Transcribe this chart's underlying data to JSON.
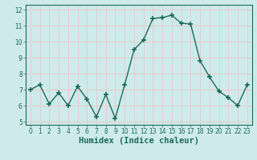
{
  "title": "",
  "xlabel": "Humidex (Indice chaleur)",
  "ylabel": "",
  "x_values": [
    0,
    1,
    2,
    3,
    4,
    5,
    6,
    7,
    8,
    9,
    10,
    11,
    12,
    13,
    14,
    15,
    16,
    17,
    18,
    19,
    20,
    21,
    22,
    23
  ],
  "y_values": [
    7.0,
    7.3,
    6.1,
    6.8,
    6.0,
    7.2,
    6.4,
    5.3,
    6.7,
    5.2,
    7.3,
    9.5,
    10.1,
    11.45,
    11.5,
    11.65,
    11.15,
    11.1,
    8.8,
    7.8,
    6.9,
    6.5,
    6.0,
    7.3
  ],
  "line_color": "#1a6b5a",
  "marker": "+",
  "marker_size": 4,
  "line_width": 1.0,
  "ylim": [
    4.8,
    12.3
  ],
  "xlim": [
    -0.5,
    23.5
  ],
  "yticks": [
    5,
    6,
    7,
    8,
    9,
    10,
    11,
    12
  ],
  "xticks": [
    0,
    1,
    2,
    3,
    4,
    5,
    6,
    7,
    8,
    9,
    10,
    11,
    12,
    13,
    14,
    15,
    16,
    17,
    18,
    19,
    20,
    21,
    22,
    23
  ],
  "xtick_labels": [
    "0",
    "1",
    "2",
    "3",
    "4",
    "5",
    "6",
    "7",
    "8",
    "9",
    "10",
    "11",
    "12",
    "13",
    "14",
    "15",
    "16",
    "17",
    "18",
    "19",
    "20",
    "21",
    "22",
    "23"
  ],
  "bg_color": "#ceeaea",
  "grid_color": "#e8c8c8",
  "tick_fontsize": 5.5,
  "xlabel_fontsize": 7.5,
  "marker_color": "#1a6b5a"
}
